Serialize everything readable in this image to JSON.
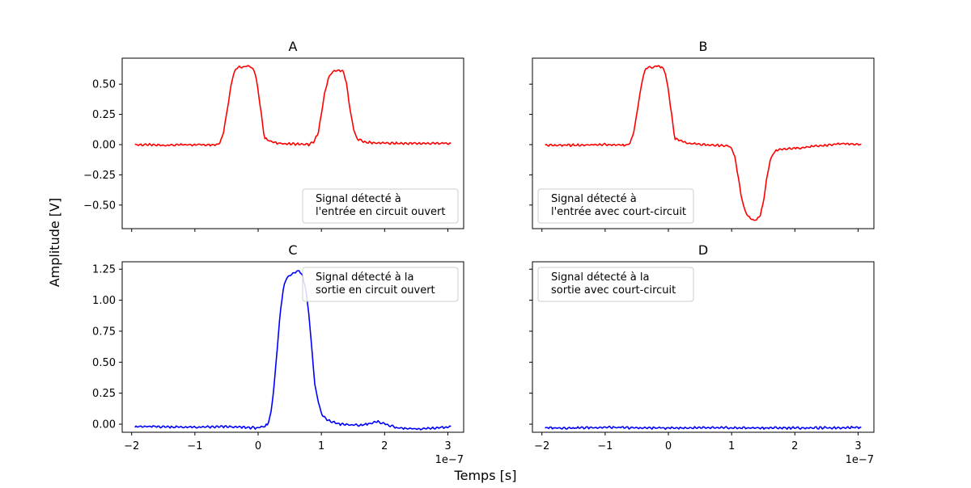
{
  "figure": {
    "ylabel": "Amplitude [V]",
    "xlabel": "Temps [s]"
  },
  "chart_data": [
    {
      "panel": "A",
      "type": "line",
      "title": "A",
      "color": "#ff0000",
      "xlim": [
        -2.15e-07,
        3.25e-07
      ],
      "ylim": [
        -0.695,
        0.715
      ],
      "xticks": [
        -2e-07,
        -1e-07,
        0,
        1e-07,
        2e-07,
        3e-07
      ],
      "xtick_labels": [
        "−2",
        "−1",
        "0",
        "1",
        "2",
        "3"
      ],
      "show_xtick_labels": false,
      "yticks": [
        -0.5,
        -0.25,
        0,
        0.25,
        0.5
      ],
      "ytick_labels": [
        "−0.50",
        "−0.25",
        "0.00",
        "0.25",
        "0.50"
      ],
      "show_ytick_labels": true,
      "offset_text": "",
      "legend": {
        "text": [
          "Signal détecté à",
          "l'entrée en circuit ouvert"
        ],
        "loc": "lower right"
      },
      "x": [
        -1.95e-07,
        -1.5e-07,
        -1e-07,
        -6.5e-08,
        -6e-08,
        -5.5e-08,
        -5e-08,
        -4.5e-08,
        -4e-08,
        -3.5e-08,
        -3e-08,
        -2.5e-08,
        -2e-08,
        -1.5e-08,
        -1e-08,
        -5e-09,
        0,
        5e-09,
        1e-08,
        3e-08,
        6e-08,
        8e-08,
        8.8e-08,
        9.5e-08,
        1e-07,
        1.05e-07,
        1.1e-07,
        1.15e-07,
        1.2e-07,
        1.25e-07,
        1.3e-07,
        1.35e-07,
        1.4e-07,
        1.45e-07,
        1.5e-07,
        1.55e-07,
        1.6e-07,
        1.65e-07,
        1.7e-07,
        1.8e-07,
        2.2e-07,
        2.6e-07,
        3.05e-07
      ],
      "y": [
        0.0,
        -0.005,
        0.0,
        0.0,
        0.02,
        0.1,
        0.25,
        0.42,
        0.57,
        0.63,
        0.645,
        0.635,
        0.65,
        0.645,
        0.64,
        0.6,
        0.45,
        0.25,
        0.05,
        0.01,
        0.005,
        0.0,
        0.02,
        0.1,
        0.25,
        0.42,
        0.53,
        0.59,
        0.61,
        0.61,
        0.615,
        0.6,
        0.5,
        0.3,
        0.15,
        0.06,
        0.04,
        0.03,
        0.02,
        0.015,
        0.01,
        0.01,
        0.01
      ]
    },
    {
      "panel": "B",
      "type": "line",
      "title": "B",
      "color": "#ff0000",
      "xlim": [
        -2.15e-07,
        3.25e-07
      ],
      "ylim": [
        -0.695,
        0.715
      ],
      "xticks": [
        -2e-07,
        -1e-07,
        0,
        1e-07,
        2e-07,
        3e-07
      ],
      "xtick_labels": [
        "−2",
        "−1",
        "0",
        "1",
        "2",
        "3"
      ],
      "show_xtick_labels": false,
      "yticks": [
        -0.5,
        -0.25,
        0,
        0.25,
        0.5
      ],
      "ytick_labels": [
        "−0.50",
        "−0.25",
        "0.00",
        "0.25",
        "0.50"
      ],
      "show_ytick_labels": false,
      "offset_text": "",
      "legend": {
        "text": [
          "Signal détecté à",
          "l'entrée avec court-circuit"
        ],
        "loc": "lower left"
      },
      "x": [
        -1.95e-07,
        -1.5e-07,
        -1e-07,
        -6.5e-08,
        -6e-08,
        -5.5e-08,
        -5e-08,
        -4.5e-08,
        -4e-08,
        -3.5e-08,
        -3e-08,
        -2.5e-08,
        -2e-08,
        -1.5e-08,
        -1e-08,
        -5e-09,
        0,
        5e-09,
        1e-08,
        3e-08,
        6e-08,
        8e-08,
        9.5e-08,
        1e-07,
        1.05e-07,
        1.1e-07,
        1.15e-07,
        1.2e-07,
        1.25e-07,
        1.3e-07,
        1.35e-07,
        1.4e-07,
        1.45e-07,
        1.5e-07,
        1.55e-07,
        1.6e-07,
        1.65e-07,
        1.7e-07,
        1.8e-07,
        2.2e-07,
        2.6e-07,
        2.8e-07,
        3.05e-07
      ],
      "y": [
        -0.005,
        -0.005,
        0.0,
        -0.005,
        0.02,
        0.1,
        0.25,
        0.42,
        0.57,
        0.63,
        0.645,
        0.635,
        0.65,
        0.645,
        0.64,
        0.6,
        0.45,
        0.25,
        0.05,
        0.01,
        0.0,
        -0.005,
        -0.01,
        -0.03,
        -0.1,
        -0.25,
        -0.42,
        -0.53,
        -0.59,
        -0.61,
        -0.625,
        -0.62,
        -0.59,
        -0.48,
        -0.3,
        -0.15,
        -0.08,
        -0.05,
        -0.04,
        -0.02,
        0.0,
        0.01,
        0.0
      ]
    },
    {
      "panel": "C",
      "type": "line",
      "title": "C",
      "color": "#0000ff",
      "xlim": [
        -2.15e-07,
        3.25e-07
      ],
      "ylim": [
        -0.065,
        1.31
      ],
      "xticks": [
        -2e-07,
        -1e-07,
        0,
        1e-07,
        2e-07,
        3e-07
      ],
      "xtick_labels": [
        "−2",
        "−1",
        "0",
        "1",
        "2",
        "3"
      ],
      "show_xtick_labels": true,
      "yticks": [
        0,
        0.25,
        0.5,
        0.75,
        1.0,
        1.25
      ],
      "ytick_labels": [
        "0.00",
        "0.25",
        "0.50",
        "0.75",
        "1.00",
        "1.25"
      ],
      "show_ytick_labels": true,
      "offset_text": "1e−7",
      "legend": {
        "text": [
          "Signal détecté à la",
          "sortie en circuit ouvert"
        ],
        "loc": "upper right"
      },
      "x": [
        -1.95e-07,
        -1.5e-07,
        -1e-07,
        -5e-08,
        0,
        1e-08,
        1.5e-08,
        2e-08,
        2.5e-08,
        3e-08,
        3.5e-08,
        4e-08,
        4.5e-08,
        5e-08,
        5.5e-08,
        6e-08,
        6.5e-08,
        7e-08,
        7.5e-08,
        8e-08,
        8.5e-08,
        9e-08,
        1e-07,
        1.1e-07,
        1.3e-07,
        1.6e-07,
        1.9e-07,
        2.2e-07,
        2.5e-07,
        2.8e-07,
        3.05e-07
      ],
      "y": [
        -0.02,
        -0.02,
        -0.025,
        -0.02,
        -0.03,
        -0.02,
        0.0,
        0.08,
        0.3,
        0.6,
        0.9,
        1.1,
        1.18,
        1.2,
        1.22,
        1.23,
        1.24,
        1.2,
        1.1,
        0.9,
        0.6,
        0.3,
        0.08,
        0.03,
        0.0,
        -0.01,
        0.02,
        -0.03,
        -0.04,
        -0.03,
        -0.02
      ]
    },
    {
      "panel": "D",
      "type": "line",
      "title": "D",
      "color": "#0000ff",
      "xlim": [
        -2.15e-07,
        3.25e-07
      ],
      "ylim": [
        -0.065,
        1.31
      ],
      "xticks": [
        -2e-07,
        -1e-07,
        0,
        1e-07,
        2e-07,
        3e-07
      ],
      "xtick_labels": [
        "−2",
        "−1",
        "0",
        "1",
        "2",
        "3"
      ],
      "show_xtick_labels": true,
      "yticks": [
        0,
        0.25,
        0.5,
        0.75,
        1.0,
        1.25
      ],
      "ytick_labels": [
        "0.00",
        "0.25",
        "0.50",
        "0.75",
        "1.00",
        "1.25"
      ],
      "show_ytick_labels": false,
      "offset_text": "1e−7",
      "legend": {
        "text": [
          "Signal détecté à la",
          "sortie avec court-circuit"
        ],
        "loc": "upper left"
      },
      "x": [
        -1.95e-07,
        -1.5e-07,
        -1e-07,
        -5e-08,
        0,
        5e-08,
        1e-07,
        1.5e-07,
        2e-07,
        2.5e-07,
        3.05e-07
      ],
      "y": [
        -0.03,
        -0.03,
        -0.025,
        -0.03,
        -0.03,
        -0.03,
        -0.03,
        -0.03,
        -0.03,
        -0.03,
        -0.025
      ]
    }
  ]
}
